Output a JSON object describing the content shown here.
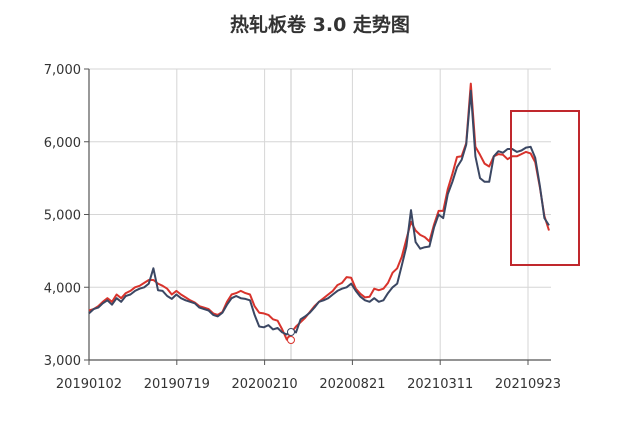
{
  "chart_data": {
    "type": "line",
    "title": "热轧板卷 3.0 走势图",
    "xlabel": "",
    "ylabel": "",
    "ylim": [
      3000,
      7000
    ],
    "yticks": [
      3000,
      4000,
      5000,
      6000,
      7000
    ],
    "ytick_labels": [
      "3,000",
      "4,000",
      "5,000",
      "6,000",
      "7,000"
    ],
    "xtick_labels": [
      "20190102",
      "20190719",
      "20200210",
      "20200821",
      "20210311",
      "20210923"
    ],
    "grid": true,
    "legend": null,
    "colors": {
      "series_dark": "#3b4763",
      "series_red": "#d8332c",
      "highlight_box": "#c0282d",
      "grid": "#d6d6d6",
      "axis": "#555555"
    },
    "x": [
      0,
      1,
      2,
      3,
      4,
      5,
      6,
      7,
      8,
      9,
      10,
      11,
      12,
      13,
      14,
      15,
      16,
      17,
      18,
      19,
      20,
      21,
      22,
      23,
      24,
      25,
      26,
      27,
      28,
      29,
      30,
      31,
      32,
      33,
      34,
      35,
      36,
      37,
      38,
      39,
      40,
      41,
      42,
      43,
      44,
      45,
      46,
      47,
      48,
      49,
      50,
      51,
      52,
      53,
      54,
      55,
      56,
      57,
      58,
      59,
      60,
      61,
      62,
      63,
      64,
      65,
      66,
      67,
      68,
      69,
      70,
      71,
      72,
      73,
      74,
      75,
      76,
      77,
      78,
      79,
      80,
      81,
      82,
      83,
      84,
      85,
      86,
      87,
      88,
      89,
      90,
      91,
      92,
      93,
      94,
      95,
      96,
      97,
      98,
      99,
      100
    ],
    "series": [
      {
        "name": "dark",
        "values": [
          3640,
          3700,
          3720,
          3780,
          3820,
          3760,
          3850,
          3800,
          3880,
          3900,
          3950,
          3980,
          4000,
          4050,
          4260,
          3960,
          3950,
          3880,
          3840,
          3900,
          3850,
          3820,
          3800,
          3780,
          3720,
          3700,
          3680,
          3620,
          3600,
          3650,
          3760,
          3850,
          3880,
          3850,
          3840,
          3820,
          3620,
          3460,
          3450,
          3480,
          3420,
          3440,
          3380,
          3350,
          3420,
          3380,
          3560,
          3600,
          3650,
          3720,
          3800,
          3820,
          3850,
          3900,
          3950,
          3980,
          4000,
          4050,
          3950,
          3870,
          3820,
          3800,
          3850,
          3800,
          3820,
          3920,
          4000,
          4050,
          4300,
          4560,
          5060,
          4620,
          4530,
          4550,
          4560,
          4820,
          5000,
          4950,
          5280,
          5450,
          5650,
          5750,
          5960,
          6700,
          5800,
          5500,
          5450,
          5450,
          5800,
          5870,
          5850,
          5900,
          5900,
          5860,
          5880,
          5920,
          5930,
          5780,
          5400,
          4950,
          4850
        ]
      },
      {
        "name": "red",
        "values": [
          3680,
          3700,
          3740,
          3800,
          3850,
          3800,
          3900,
          3850,
          3920,
          3950,
          4000,
          4020,
          4060,
          4100,
          4100,
          4050,
          4020,
          3980,
          3900,
          3950,
          3900,
          3860,
          3820,
          3790,
          3740,
          3720,
          3700,
          3640,
          3620,
          3660,
          3800,
          3900,
          3920,
          3950,
          3920,
          3900,
          3740,
          3650,
          3640,
          3620,
          3560,
          3540,
          3420,
          3280,
          3380,
          3460,
          3520,
          3580,
          3660,
          3740,
          3800,
          3850,
          3900,
          3950,
          4030,
          4060,
          4140,
          4130,
          3980,
          3910,
          3860,
          3870,
          3980,
          3960,
          3980,
          4060,
          4200,
          4260,
          4420,
          4660,
          4900,
          4780,
          4720,
          4690,
          4630,
          4860,
          5050,
          5050,
          5350,
          5560,
          5790,
          5800,
          5980,
          6800,
          5930,
          5820,
          5700,
          5660,
          5800,
          5830,
          5820,
          5760,
          5800,
          5800,
          5830,
          5860,
          5840,
          5720,
          5380,
          4980,
          4780
        ]
      }
    ],
    "annotations": [
      {
        "type": "rectangle",
        "label": "highlight recent drop",
        "x_range": [
          88,
          100
        ]
      }
    ]
  }
}
